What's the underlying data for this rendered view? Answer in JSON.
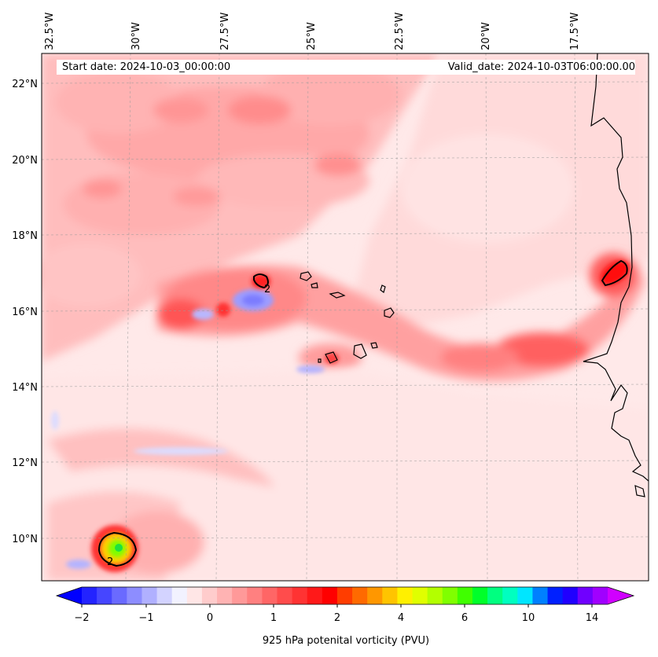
{
  "header": {
    "start_date": "Start date: 2024-10-03_00:00:00",
    "valid_date": "Valid_date: 2024-10-03T06:00:00.00"
  },
  "axes": {
    "lon_labels": [
      "32.5°W",
      "30°W",
      "27.5°W",
      "25°W",
      "22.5°W",
      "20°W",
      "17.5°W"
    ],
    "lat_labels": [
      "22°N",
      "20°N",
      "18°N",
      "16°N",
      "14°N",
      "12°N",
      "10°N"
    ]
  },
  "colorbar": {
    "title": "925 hPa potenital vorticity (PVU)",
    "tick_labels": [
      "−2",
      "−1",
      "0",
      "1",
      "2",
      "4",
      "6",
      "10",
      "14"
    ],
    "colors": [
      "#0000ff",
      "#2323ff",
      "#4646ff",
      "#6a6aff",
      "#8d8dff",
      "#b0b0ff",
      "#d3d3ff",
      "#f2f2ff",
      "#ffe6e6",
      "#ffcccc",
      "#ffb3b3",
      "#ff9999",
      "#ff8080",
      "#ff6666",
      "#ff4c4c",
      "#ff3333",
      "#ff1919",
      "#ff0000",
      "#ff3d00",
      "#ff6a00",
      "#ff9700",
      "#ffc400",
      "#fff000",
      "#e0ff00",
      "#b3ff00",
      "#80ff00",
      "#40ff00",
      "#00ff2a",
      "#00ff80",
      "#00ffc0",
      "#00e6ff",
      "#0080ff",
      "#0020ff",
      "#2000ff",
      "#7000ff",
      "#a000ff",
      "#d000ff"
    ]
  },
  "map": {
    "contour_label": "2"
  }
}
